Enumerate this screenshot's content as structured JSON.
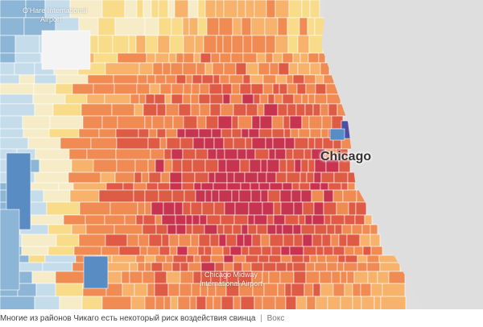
{
  "map": {
    "city_label": "Chicago",
    "poi": [
      {
        "line1": "O'Hare International",
        "line2": "Airport"
      },
      {
        "line1": "Chicago Midway",
        "line2": "International Airport"
      }
    ],
    "palette": {
      "dark_red": "#c7344f",
      "red_orange": "#de5b45",
      "orange": "#ef8b53",
      "light_orange": "#f7b36c",
      "yellow": "#f8dc8a",
      "cream": "#f6ecc7",
      "light_blue": "#c5dcea",
      "mid_blue": "#8db6d6",
      "blue": "#5a8cc4",
      "indigo": "#4e4fa2",
      "lake": "#dedede",
      "tract_border": "#ffffff"
    }
  },
  "caption": {
    "text": "Многие из районов Чикаго есть некоторый риск воздействия свинца",
    "separator": "|",
    "source": "Вокс"
  }
}
